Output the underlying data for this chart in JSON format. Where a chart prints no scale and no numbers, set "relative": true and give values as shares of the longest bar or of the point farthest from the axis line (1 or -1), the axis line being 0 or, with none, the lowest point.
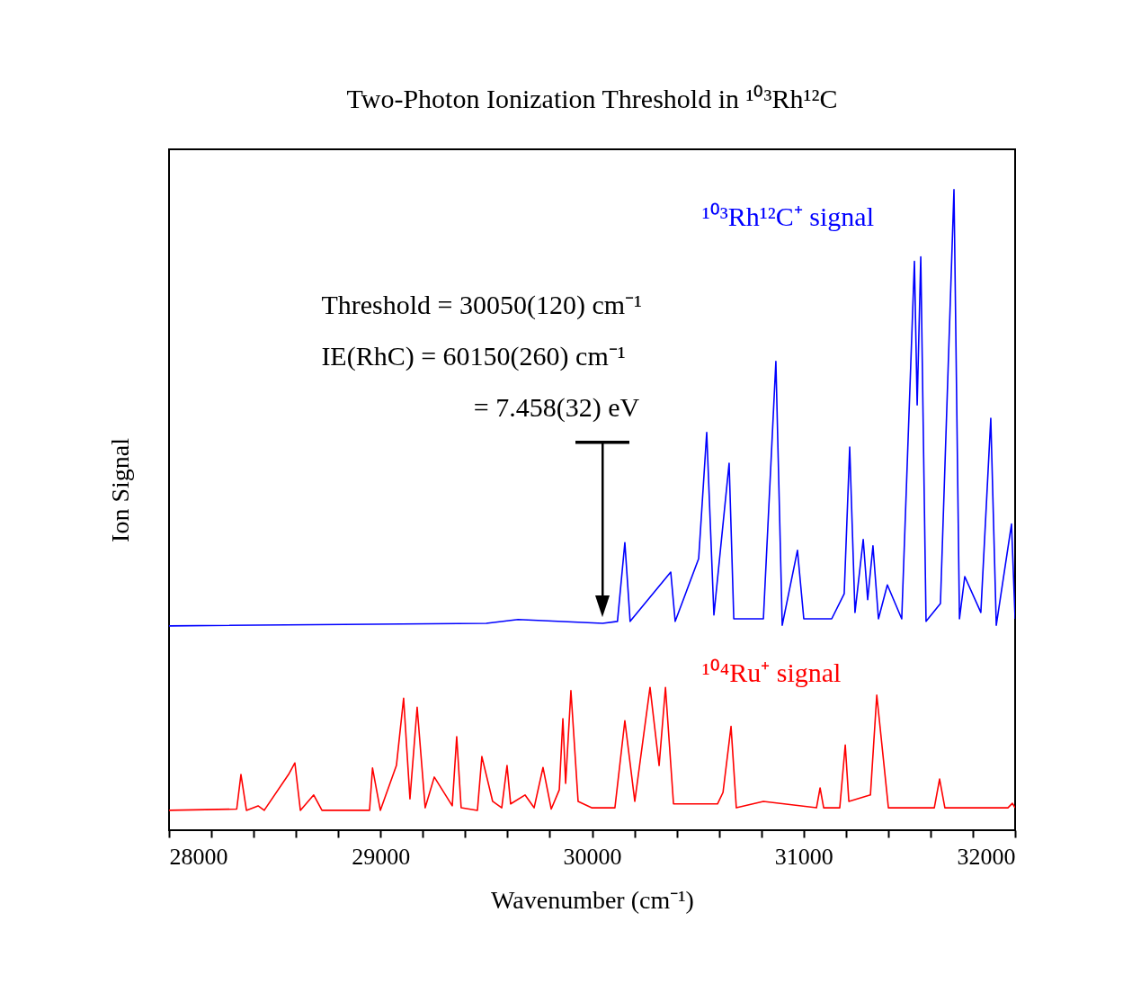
{
  "chart_data": {
    "type": "line",
    "title": "Two-Photon Ionization Threshold in ¹⁰³Rh¹²C",
    "xlabel": "Wavenumber (cm⁻¹)",
    "ylabel": "Ion Signal",
    "relative": true,
    "xlim": [
      28000,
      32000
    ],
    "xticks": [
      28000,
      {
        "value": 28200,
        "label": null
      },
      {
        "value": 28400,
        "label": null
      },
      {
        "value": 28600,
        "label": null
      },
      {
        "value": 28800,
        "label": null
      },
      29000,
      {
        "value": 29200,
        "label": null
      },
      {
        "value": 29400,
        "label": null
      },
      {
        "value": 29600,
        "label": null
      },
      {
        "value": 29800,
        "label": null
      },
      30000,
      {
        "value": 30200,
        "label": null
      },
      {
        "value": 30400,
        "label": null
      },
      {
        "value": 30600,
        "label": null
      },
      {
        "value": 30800,
        "label": null
      },
      31000,
      {
        "value": 31200,
        "label": null
      },
      {
        "value": 31400,
        "label": null
      },
      {
        "value": 31600,
        "label": null
      },
      {
        "value": 31800,
        "label": null
      },
      32000
    ],
    "series": [
      {
        "name": "¹⁰³Rh¹²C⁺ signal",
        "color": "#0000ff",
        "x": [
          28000,
          29500,
          29650,
          30050,
          30120,
          30155,
          30180,
          30372,
          30393,
          30504,
          30542,
          30576,
          30648,
          30670,
          30810,
          30869,
          30899,
          30971,
          31001,
          31133,
          31192,
          31218,
          31243,
          31282,
          31303,
          31328,
          31354,
          31396,
          31464,
          31524,
          31537,
          31554,
          31579,
          31647,
          31711,
          31737,
          31762,
          31838,
          31885,
          31911,
          31983,
          32000
        ],
        "values": [
          0.319,
          0.323,
          0.329,
          0.323,
          0.326,
          0.449,
          0.326,
          0.403,
          0.326,
          0.424,
          0.621,
          0.336,
          0.573,
          0.33,
          0.33,
          0.732,
          0.32,
          0.437,
          0.33,
          0.33,
          0.369,
          0.598,
          0.34,
          0.454,
          0.36,
          0.444,
          0.33,
          0.383,
          0.33,
          0.888,
          0.664,
          0.895,
          0.326,
          0.354,
          1,
          0.33,
          0.396,
          0.34,
          0.643,
          0.32,
          0.478,
          0.33
        ]
      },
      {
        "name": "¹⁰⁴Ru⁺ signal",
        "color": "#ff0000",
        "x": [
          28000,
          28320,
          28340,
          28366,
          28421,
          28450,
          28565,
          28595,
          28621,
          28684,
          28723,
          28948,
          28962,
          28999,
          29075,
          29109,
          29139,
          29173,
          29211,
          29254,
          29339,
          29360,
          29381,
          29458,
          29479,
          29530,
          29573,
          29598,
          29615,
          29683,
          29726,
          29768,
          29807,
          29845,
          29862,
          29875,
          29900,
          29934,
          29998,
          30108,
          30155,
          30202,
          30274,
          30317,
          30347,
          30385,
          30593,
          30619,
          30657,
          30682,
          30810,
          31061,
          31078,
          31095,
          31171,
          31197,
          31214,
          31316,
          31346,
          31401,
          31618,
          31643,
          31668,
          31966,
          31987,
          32000
        ],
        "values": [
          0.031,
          0.033,
          0.087,
          0.031,
          0.038,
          0.031,
          0.087,
          0.105,
          0.031,
          0.055,
          0.031,
          0.031,
          0.097,
          0.031,
          0.101,
          0.206,
          0.049,
          0.192,
          0.035,
          0.083,
          0.038,
          0.146,
          0.035,
          0.031,
          0.115,
          0.045,
          0.035,
          0.101,
          0.041,
          0.055,
          0.035,
          0.098,
          0.033,
          0.063,
          0.174,
          0.073,
          0.218,
          0.045,
          0.035,
          0.035,
          0.171,
          0.045,
          0.223,
          0.101,
          0.223,
          0.041,
          0.041,
          0.059,
          0.162,
          0.035,
          0.045,
          0.035,
          0.066,
          0.035,
          0.035,
          0.133,
          0.045,
          0.055,
          0.211,
          0.035,
          0.035,
          0.08,
          0.035,
          0.035,
          0.042,
          0.035
        ]
      }
    ],
    "annotations": [
      "Threshold = 30050(120) cm⁻¹",
      "IE(RhC)   =  60150(260) cm⁻¹",
      "=  7.458(32) eV"
    ],
    "ref_lines": [
      {
        "axis": "x",
        "value": 30050,
        "color": "#000000"
      }
    ],
    "marker": "none",
    "line_style": "solid",
    "grid": false
  }
}
